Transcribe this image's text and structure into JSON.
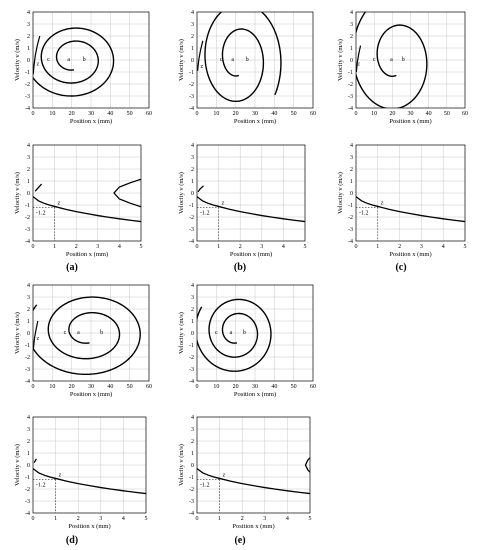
{
  "figure": {
    "subfigure_labels": [
      "(a)",
      "(b)",
      "(c)",
      "(d)",
      "(e)"
    ]
  },
  "chart_data": [
    {
      "id": "a-top",
      "type": "line",
      "panel": "a",
      "xlabel": "Position x (mm)",
      "ylabel": "Velocity v (m/s)",
      "xlim": [
        0,
        60
      ],
      "ylim": [
        -4,
        4
      ],
      "xticks": [
        0,
        10,
        20,
        30,
        40,
        50,
        60
      ],
      "yticks": [
        -4,
        -3,
        -2,
        -1,
        0,
        1,
        2,
        3,
        4
      ],
      "grid": true,
      "spiral": {
        "center": [
          21,
          0.1
        ],
        "a0": 1.6,
        "b0": 0.2,
        "growth": 1.18,
        "start_angle": -1.6,
        "turns": 2.35
      },
      "branches": [
        {
          "x": [
            3.5,
            2.2,
            1.2,
            0.5,
            0.1
          ],
          "y": [
            2.0,
            1.2,
            0.4,
            -0.5,
            -1.2
          ]
        }
      ],
      "annotations": [
        {
          "text": "a",
          "x": 18.5,
          "y": 0.1
        },
        {
          "text": "b",
          "x": 26.5,
          "y": 0.1
        },
        {
          "text": "c",
          "x": 8,
          "y": 0.1
        },
        {
          "text": "z",
          "x": 2.5,
          "y": -0.3
        }
      ]
    },
    {
      "id": "b-top",
      "type": "line",
      "panel": "b",
      "xlabel": "Position x (mm)",
      "ylabel": "Velocity v (m/s)",
      "xlim": [
        0,
        60
      ],
      "ylim": [
        -4,
        4
      ],
      "xticks": [
        0,
        10,
        20,
        30,
        40,
        50,
        60
      ],
      "yticks": [
        -4,
        -3,
        -2,
        -1,
        0,
        1,
        2,
        3,
        4
      ],
      "grid": true,
      "spiral": {
        "center": [
          21.5,
          0.1
        ],
        "a0": 1.4,
        "b0": 0.3,
        "growth": 1.55,
        "start_angle": -1.6,
        "turns": 1.85
      },
      "branches": [
        {
          "x": [
            3.0,
            1.8,
            0.9,
            0.3
          ],
          "y": [
            1.6,
            0.8,
            0.0,
            -0.9
          ]
        }
      ],
      "annotations": [
        {
          "text": "a",
          "x": 18.5,
          "y": 0.1
        },
        {
          "text": "b",
          "x": 26,
          "y": 0.1
        },
        {
          "text": "c",
          "x": 12.5,
          "y": 0.1
        },
        {
          "text": "z",
          "x": 2.5,
          "y": -0.5
        }
      ]
    },
    {
      "id": "c-top",
      "type": "line",
      "panel": "c",
      "xlabel": "Position x (mm)",
      "ylabel": "Velocity v (m/s)",
      "xlim": [
        0,
        60
      ],
      "ylim": [
        -4,
        4
      ],
      "xticks": [
        0,
        10,
        20,
        30,
        40,
        50,
        60
      ],
      "yticks": [
        -4,
        -3,
        -2,
        -1,
        0,
        1,
        2,
        3,
        4
      ],
      "grid": true,
      "spiral": {
        "center": [
          22,
          0.1
        ],
        "a0": 1.6,
        "b0": 0.3,
        "growth": 2.0,
        "start_angle": -1.6,
        "turns": 1.45
      },
      "branches": [
        {
          "x": [
            2.5,
            1.5,
            0.7,
            0.2
          ],
          "y": [
            1.2,
            0.5,
            -0.2,
            -1.0
          ]
        }
      ],
      "annotations": [
        {
          "text": "a",
          "x": 19.5,
          "y": 0.1
        },
        {
          "text": "b",
          "x": 26,
          "y": 0.1
        },
        {
          "text": "c",
          "x": 10,
          "y": 0.1
        },
        {
          "text": "z",
          "x": 1.5,
          "y": -0.3
        }
      ]
    },
    {
      "id": "d-top",
      "type": "line",
      "panel": "d",
      "xlabel": "Position x (mm)",
      "ylabel": "Velocity v (m/s)",
      "xlim": [
        0,
        60
      ],
      "ylim": [
        -4,
        4
      ],
      "xticks": [
        0,
        10,
        20,
        30,
        40,
        50,
        60
      ],
      "yticks": [
        -4,
        -3,
        -2,
        -1,
        0,
        1,
        2,
        3,
        4
      ],
      "grid": true,
      "spiral": {
        "center": [
          29,
          0.1
        ],
        "a0": 1.8,
        "b0": 0.2,
        "growth": 1.42,
        "start_angle": -1.6,
        "turns": 2.35
      },
      "branches": [
        {
          "x": [
            2.5,
            1.6,
            0.8,
            0.2
          ],
          "y": [
            1.0,
            0.3,
            -0.4,
            -1.3
          ]
        }
      ],
      "annotations": [
        {
          "text": "a",
          "x": 23.5,
          "y": 0.1
        },
        {
          "text": "b",
          "x": 35.5,
          "y": 0.1
        },
        {
          "text": "c",
          "x": 16.5,
          "y": 0.1
        },
        {
          "text": "z",
          "x": 2.5,
          "y": -0.4
        }
      ]
    },
    {
      "id": "e-top",
      "type": "line",
      "panel": "e",
      "xlabel": "Position x (mm)",
      "ylabel": "Velocity v (m/s)",
      "xlim": [
        0,
        60
      ],
      "ylim": [
        -4,
        4
      ],
      "xticks": [
        0,
        10,
        20,
        30,
        40,
        50,
        60
      ],
      "yticks": [
        -4,
        -3,
        -2,
        -1,
        0,
        1,
        2,
        3,
        4
      ],
      "grid": true,
      "spiral": {
        "center": [
          20.5,
          0.1
        ],
        "a0": 1.3,
        "b0": 0.2,
        "growth": 1.28,
        "start_angle": -1.6,
        "turns": 2.35
      },
      "branches": [],
      "annotations": [
        {
          "text": "a",
          "x": 17.5,
          "y": 0.1
        },
        {
          "text": "b",
          "x": 24.5,
          "y": 0.1
        },
        {
          "text": "c",
          "x": 10,
          "y": 0.1
        }
      ]
    },
    {
      "id": "a-bottom",
      "type": "line",
      "panel": "a",
      "xlabel": "Position x (mm)",
      "ylabel": "Velocity v (m/s)",
      "xlim": [
        0,
        5
      ],
      "ylim": [
        -4,
        4
      ],
      "xticks": [
        0,
        1,
        2,
        3,
        4,
        5
      ],
      "yticks": [
        -4,
        -3,
        -2,
        -1,
        0,
        1,
        2,
        3,
        4
      ],
      "grid": true,
      "series": [
        {
          "x": [
            0,
            0.25,
            0.5,
            0.75,
            1,
            1.5,
            2,
            2.5,
            3,
            3.5,
            4,
            4.5,
            5
          ],
          "y": [
            -0.3,
            -0.65,
            -0.85,
            -1.0,
            -1.12,
            -1.35,
            -1.55,
            -1.72,
            -1.88,
            -2.02,
            -2.15,
            -2.27,
            -2.38
          ]
        },
        {
          "x": [
            0.1,
            0.25,
            0.4
          ],
          "y": [
            0.15,
            0.45,
            0.75
          ]
        },
        {
          "x": [
            5,
            4.5,
            4.0,
            3.75,
            4.0,
            4.5,
            5
          ],
          "y": [
            1.15,
            0.85,
            0.5,
            0.0,
            -0.5,
            -0.85,
            -1.15
          ]
        }
      ],
      "markers": [
        {
          "x": 1,
          "y": -1.2,
          "label": "z",
          "hline_label": "-1.2"
        }
      ]
    },
    {
      "id": "b-bottom",
      "type": "line",
      "panel": "b",
      "xlabel": "Position x (mm)",
      "ylabel": "Velocity v (m/s)",
      "xlim": [
        0,
        5
      ],
      "ylim": [
        -4,
        4
      ],
      "xticks": [
        0,
        1,
        2,
        3,
        4,
        5
      ],
      "yticks": [
        -4,
        -3,
        -2,
        -1,
        0,
        1,
        2,
        3,
        4
      ],
      "grid": true,
      "series": [
        {
          "x": [
            0,
            0.25,
            0.5,
            0.75,
            1,
            1.5,
            2,
            2.5,
            3,
            3.5,
            4,
            4.5,
            5
          ],
          "y": [
            -0.3,
            -0.65,
            -0.85,
            -1.0,
            -1.12,
            -1.35,
            -1.55,
            -1.72,
            -1.88,
            -2.02,
            -2.15,
            -2.27,
            -2.38
          ]
        },
        {
          "x": [
            0.05,
            0.15,
            0.3
          ],
          "y": [
            0.1,
            0.35,
            0.6
          ]
        }
      ],
      "markers": [
        {
          "x": 1,
          "y": -1.2,
          "label": "z",
          "hline_label": "-1.2"
        }
      ]
    },
    {
      "id": "c-bottom",
      "type": "line",
      "panel": "c",
      "xlabel": "Position x (mm)",
      "ylabel": "Velocity v (m/s)",
      "xlim": [
        0,
        5
      ],
      "ylim": [
        -4,
        4
      ],
      "xticks": [
        0,
        1,
        2,
        3,
        4,
        5
      ],
      "yticks": [
        -4,
        -3,
        -2,
        -1,
        0,
        1,
        2,
        3,
        4
      ],
      "grid": true,
      "series": [
        {
          "x": [
            0,
            0.25,
            0.5,
            0.75,
            1,
            1.5,
            2,
            2.5,
            3,
            3.5,
            4,
            4.5,
            5
          ],
          "y": [
            -0.3,
            -0.65,
            -0.85,
            -1.0,
            -1.12,
            -1.35,
            -1.55,
            -1.72,
            -1.88,
            -2.02,
            -2.15,
            -2.27,
            -2.38
          ]
        }
      ],
      "markers": [
        {
          "x": 1,
          "y": -1.2,
          "label": "z",
          "hline_label": "-1.2"
        }
      ]
    },
    {
      "id": "d-bottom",
      "type": "line",
      "panel": "d",
      "xlabel": "Position x (mm)",
      "ylabel": "Velocity v (m/s)",
      "xlim": [
        0,
        5
      ],
      "ylim": [
        -4,
        4
      ],
      "xticks": [
        0,
        1,
        2,
        3,
        4,
        5
      ],
      "yticks": [
        -4,
        -3,
        -2,
        -1,
        0,
        1,
        2,
        3,
        4
      ],
      "grid": true,
      "series": [
        {
          "x": [
            0,
            0.25,
            0.5,
            0.75,
            1,
            1.5,
            2,
            2.5,
            3,
            3.5,
            4,
            4.5,
            5
          ],
          "y": [
            -0.3,
            -0.65,
            -0.85,
            -1.0,
            -1.12,
            -1.35,
            -1.55,
            -1.72,
            -1.88,
            -2.02,
            -2.15,
            -2.27,
            -2.38
          ]
        },
        {
          "x": [
            0.05,
            0.1,
            0.15
          ],
          "y": [
            0.2,
            0.35,
            0.5
          ]
        }
      ],
      "markers": [
        {
          "x": 1,
          "y": -1.2,
          "label": "z",
          "hline_label": "-1.2"
        }
      ]
    },
    {
      "id": "e-bottom",
      "type": "line",
      "panel": "e",
      "xlabel": "Position x (mm)",
      "ylabel": "Velocity v (m/s)",
      "xlim": [
        0,
        5
      ],
      "ylim": [
        -4,
        4
      ],
      "xticks": [
        0,
        1,
        2,
        3,
        4,
        5
      ],
      "yticks": [
        -4,
        -3,
        -2,
        -1,
        0,
        1,
        2,
        3,
        4
      ],
      "grid": true,
      "series": [
        {
          "x": [
            0,
            0.25,
            0.5,
            0.75,
            1,
            1.5,
            2,
            2.5,
            3,
            3.5,
            4,
            4.5,
            5
          ],
          "y": [
            -0.3,
            -0.65,
            -0.85,
            -1.0,
            -1.12,
            -1.35,
            -1.55,
            -1.72,
            -1.88,
            -2.02,
            -2.15,
            -2.27,
            -2.38
          ]
        },
        {
          "x": [
            5,
            4.9,
            4.8,
            4.9,
            5
          ],
          "y": [
            0.6,
            0.4,
            0.0,
            -0.4,
            -0.6
          ]
        }
      ],
      "markers": [
        {
          "x": 1,
          "y": -1.2,
          "label": "z",
          "hline_label": "-1.2"
        }
      ]
    }
  ]
}
